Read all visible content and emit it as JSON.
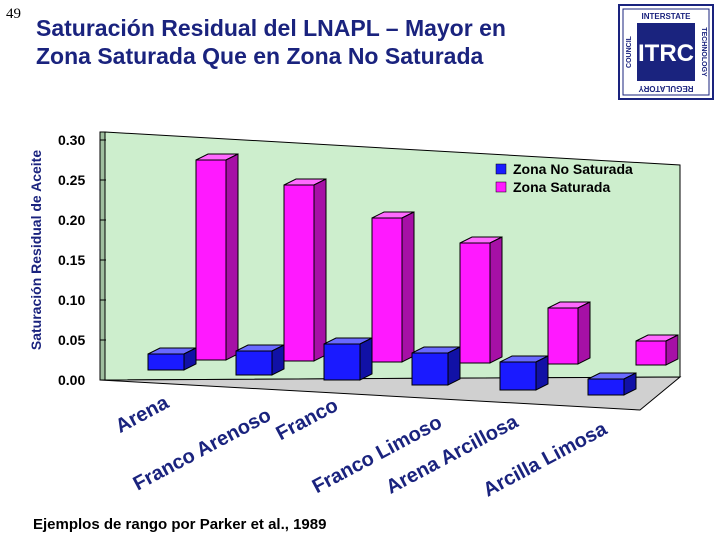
{
  "slide_number": "49",
  "title_line1": "Saturación Residual del LNAPL – Mayor en",
  "title_line2": "Zona Saturada Que en Zona No Saturada",
  "logo": {
    "top_text": "INTERSTATE",
    "right_text": "TECHNOLOGY",
    "bottom_text": "REGULATORY",
    "left_text": "COUNCIL",
    "center_text": "ITRC",
    "color": "#1a237e"
  },
  "source_note": "Ejemplos de rango por Parker et al., 1989",
  "colors": {
    "wall": "#cdeecd",
    "floor": "#d0d0d0",
    "zona_no_saturada": "#1a1aff",
    "zona_saturada": "#ff19ff"
  },
  "chart_data": {
    "type": "bar",
    "title": "Saturación Residual del LNAPL – Mayor en Zona Saturada Que en Zona No Saturada",
    "xlabel": "",
    "ylabel": "Saturación Residual de Aceite",
    "ylim": [
      0,
      0.3
    ],
    "yticks": [
      "0.00",
      "0.05",
      "0.10",
      "0.15",
      "0.20",
      "0.25",
      "0.30"
    ],
    "grid": false,
    "legend_position": "top-right",
    "categories": [
      "Arena",
      "Franco Arenoso",
      "Franco",
      "Franco Limoso",
      "Arena Arcillosa",
      "Arcilla Limosa"
    ],
    "series": [
      {
        "name": "Zona No Saturada",
        "values": [
          0.02,
          0.03,
          0.045,
          0.04,
          0.035,
          0.02
        ]
      },
      {
        "name": "Zona Saturada",
        "values": [
          0.25,
          0.22,
          0.18,
          0.15,
          0.07,
          0.03
        ]
      }
    ]
  }
}
